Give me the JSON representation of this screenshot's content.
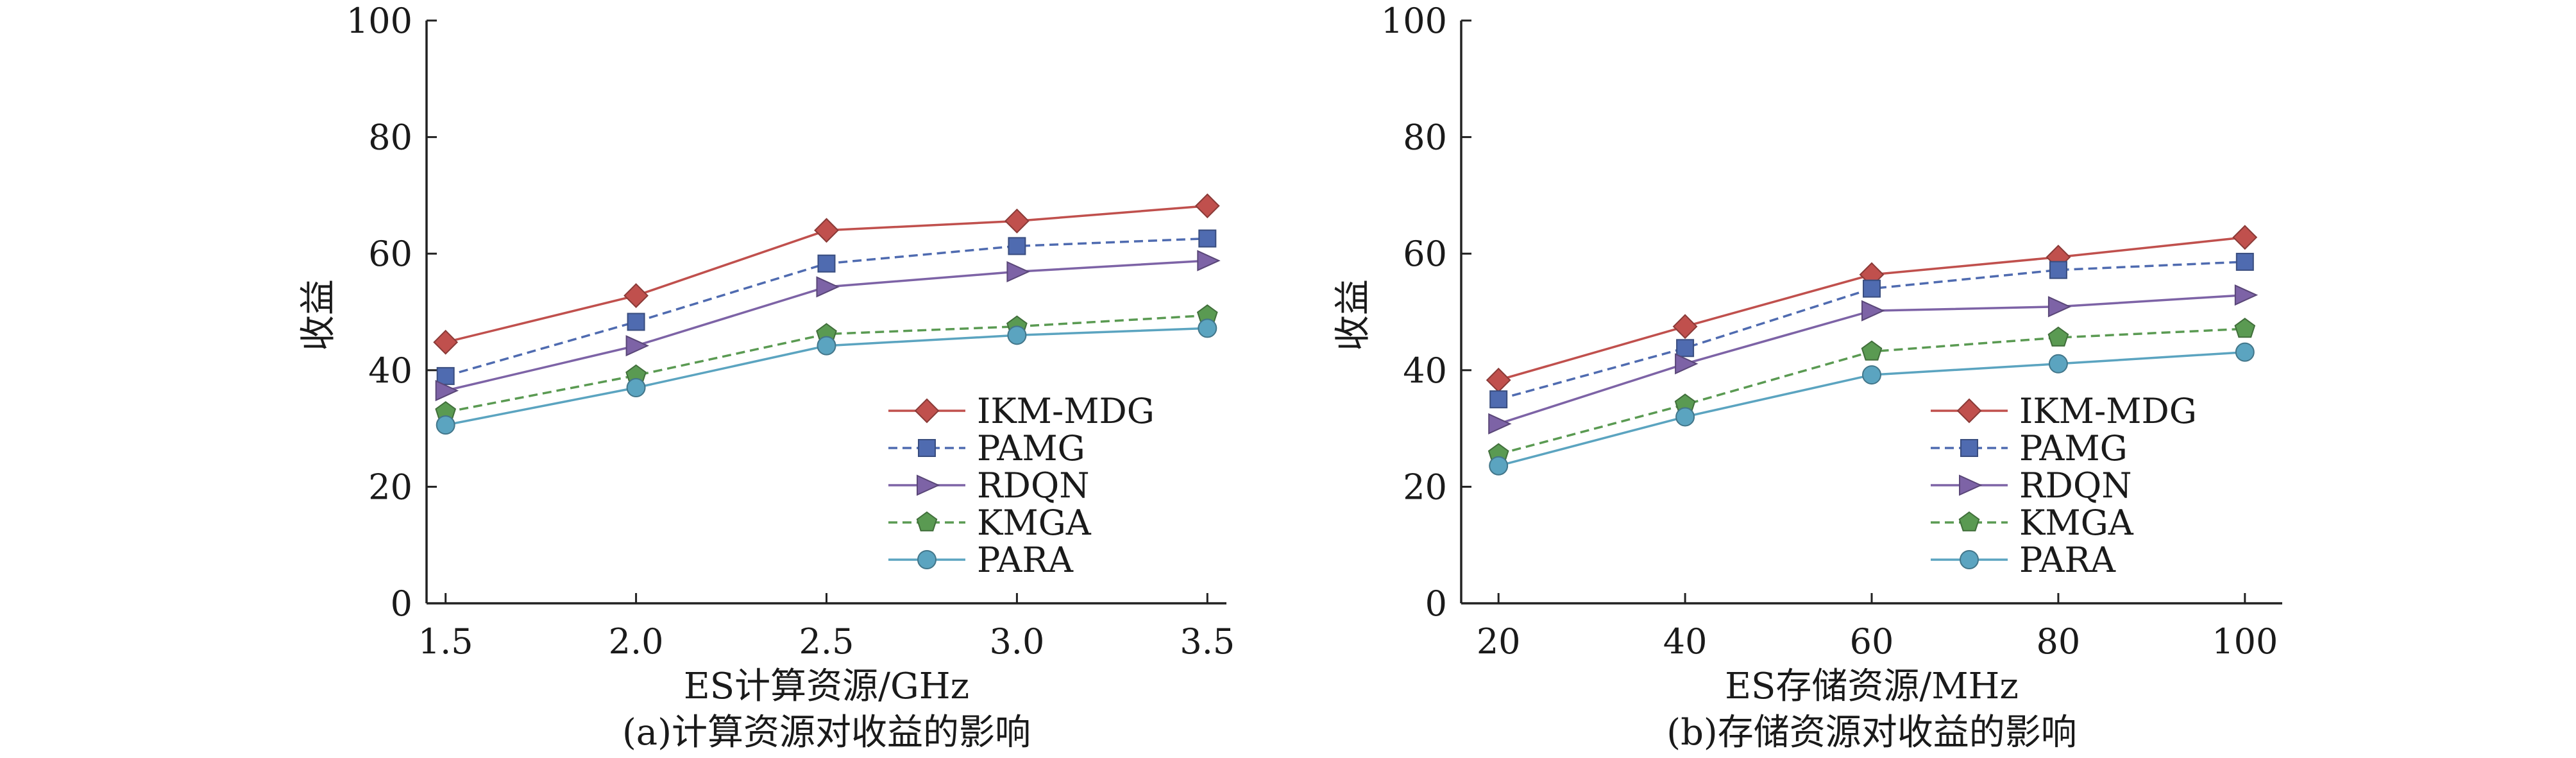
{
  "figures": [
    {
      "caption": "(a)计算资源对收益的影响",
      "chart_data": {
        "type": "line",
        "xlabel": "ES计算资源/GHz",
        "ylabel": "收益",
        "categories": [
          "1.5",
          "2.0",
          "2.5",
          "3.0",
          "3.5"
        ],
        "x": [
          1.5,
          2.0,
          2.5,
          3.0,
          3.5
        ],
        "xlim": [
          1.45,
          3.55
        ],
        "ylim": [
          0,
          100
        ],
        "yticks": [
          "0",
          "20",
          "40",
          "60",
          "80",
          "100"
        ],
        "grid": false,
        "legend_position": "bottom-right",
        "series": [
          {
            "name": "IKM-MDG",
            "marker": "diamond",
            "dash": "solid",
            "color": "#c0504d",
            "values": [
              44.8,
              52.8,
              64.0,
              65.6,
              68.2
            ]
          },
          {
            "name": "PAMG",
            "marker": "square",
            "dash": "dashed",
            "color": "#4f6bb0",
            "values": [
              39.0,
              48.3,
              58.3,
              61.3,
              62.6
            ]
          },
          {
            "name": "RDQN",
            "marker": "triangle-right",
            "dash": "solid",
            "color": "#7d63a6",
            "values": [
              36.5,
              44.2,
              54.3,
              56.9,
              58.8
            ]
          },
          {
            "name": "KMGA",
            "marker": "pentagon",
            "dash": "dashed",
            "color": "#5a9a52",
            "values": [
              32.8,
              39.1,
              46.2,
              47.5,
              49.4
            ]
          },
          {
            "name": "PARA",
            "marker": "circle",
            "dash": "solid",
            "color": "#5ba4c0",
            "values": [
              30.6,
              37.0,
              44.2,
              46.0,
              47.2
            ]
          }
        ]
      }
    },
    {
      "caption": "(b)存储资源对收益的影响",
      "chart_data": {
        "type": "line",
        "xlabel": "ES存储资源/MHz",
        "ylabel": "收益",
        "categories": [
          "20",
          "40",
          "60",
          "80",
          "100"
        ],
        "x": [
          20,
          40,
          60,
          80,
          100
        ],
        "xlim": [
          16,
          104
        ],
        "ylim": [
          0,
          100
        ],
        "yticks": [
          "0",
          "20",
          "40",
          "60",
          "80",
          "100"
        ],
        "grid": false,
        "legend_position": "bottom-right",
        "series": [
          {
            "name": "IKM-MDG",
            "marker": "diamond",
            "dash": "solid",
            "color": "#c0504d",
            "values": [
              38.3,
              47.5,
              56.4,
              59.4,
              62.8
            ]
          },
          {
            "name": "PAMG",
            "marker": "square",
            "dash": "dashed",
            "color": "#4f6bb0",
            "values": [
              35.0,
              43.8,
              54.0,
              57.2,
              58.6
            ]
          },
          {
            "name": "RDQN",
            "marker": "triangle-right",
            "dash": "solid",
            "color": "#7d63a6",
            "values": [
              30.8,
              41.1,
              50.2,
              50.9,
              52.9
            ]
          },
          {
            "name": "KMGA",
            "marker": "pentagon",
            "dash": "dashed",
            "color": "#5a9a52",
            "values": [
              25.6,
              34.1,
              43.2,
              45.6,
              47.1
            ]
          },
          {
            "name": "PARA",
            "marker": "circle",
            "dash": "solid",
            "color": "#5ba4c0",
            "values": [
              23.6,
              32.0,
              39.2,
              41.1,
              43.1
            ]
          }
        ]
      }
    }
  ]
}
